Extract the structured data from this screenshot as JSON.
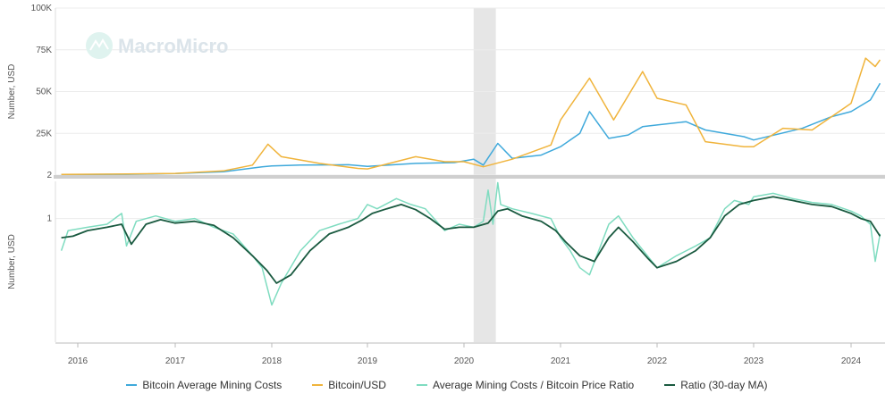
{
  "watermark": "MacroMicro",
  "chart_data": {
    "type": "line",
    "colors": {
      "mining_costs": "#3fa9db",
      "btc_usd": "#f0b43c",
      "ratio": "#7fdcc0",
      "ratio_ma": "#1a5a40",
      "recession_band": "#e6e6e6"
    },
    "x_ticks": [
      "2016",
      "2017",
      "2018",
      "2019",
      "2020",
      "2021",
      "2022",
      "2023",
      "2024"
    ],
    "shaded_region": {
      "x": [
        2020.1,
        2020.33
      ]
    },
    "panels": [
      {
        "name": "top",
        "ylabel": "Number, USD",
        "ylim": [
          2,
          100000
        ],
        "yticks": [
          {
            "value": 2,
            "label": "2"
          },
          {
            "value": 25000,
            "label": "25K"
          },
          {
            "value": 50000,
            "label": "50K"
          },
          {
            "value": 75000,
            "label": "75K"
          },
          {
            "value": 100000,
            "label": "100K"
          }
        ],
        "series": [
          {
            "name": "Bitcoin Average Mining Costs",
            "key": "mining_costs",
            "x": [
              2015.83,
              2016.5,
              2017.0,
              2017.5,
              2017.9,
              2018.0,
              2018.3,
              2018.8,
              2019.0,
              2019.5,
              2019.9,
              2020.1,
              2020.2,
              2020.35,
              2020.5,
              2020.8,
              2021.0,
              2021.2,
              2021.3,
              2021.5,
              2021.7,
              2021.85,
              2022.0,
              2022.3,
              2022.5,
              2022.9,
              2023.0,
              2023.5,
              2023.8,
              2024.0,
              2024.2,
              2024.3
            ],
            "y": [
              300,
              500,
              900,
              2000,
              5000,
              5500,
              6000,
              6200,
              5200,
              7000,
              7500,
              9500,
              6000,
              19000,
              10000,
              12000,
              17000,
              25000,
              38000,
              22000,
              24000,
              29000,
              30000,
              32000,
              27000,
              23000,
              21000,
              28000,
              35000,
              38000,
              45000,
              55000
            ]
          },
          {
            "name": "Bitcoin/USD",
            "key": "btc_usd",
            "x": [
              2015.83,
              2016.5,
              2017.0,
              2017.5,
              2017.8,
              2017.96,
              2018.1,
              2018.5,
              2018.9,
              2019.0,
              2019.5,
              2019.8,
              2020.0,
              2020.2,
              2020.5,
              2020.9,
              2021.0,
              2021.3,
              2021.55,
              2021.85,
              2022.0,
              2022.3,
              2022.5,
              2022.9,
              2023.0,
              2023.3,
              2023.6,
              2023.8,
              2024.0,
              2024.15,
              2024.25,
              2024.3
            ],
            "y": [
              400,
              650,
              1000,
              2500,
              6000,
              18500,
              11000,
              7000,
              4000,
              3700,
              11000,
              8000,
              8000,
              5000,
              9500,
              18000,
              33000,
              58000,
              33000,
              62000,
              46000,
              42000,
              20000,
              17000,
              17000,
              28000,
              27000,
              35000,
              43000,
              70000,
              65000,
              69000
            ]
          }
        ]
      },
      {
        "name": "bottom",
        "ylabel": "Number, USD",
        "ylim": [
          0.1,
          2
        ],
        "yticks": [
          {
            "value": 1,
            "label": "1"
          }
        ],
        "series": [
          {
            "name": "Average Mining Costs / Bitcoin Price Ratio",
            "key": "ratio",
            "x": [
              2015.83,
              2015.9,
              2016.1,
              2016.3,
              2016.45,
              2016.5,
              2016.6,
              2016.8,
              2017.0,
              2017.2,
              2017.4,
              2017.6,
              2017.8,
              2017.9,
              2018.0,
              2018.1,
              2018.3,
              2018.5,
              2018.7,
              2018.9,
              2019.0,
              2019.1,
              2019.3,
              2019.45,
              2019.6,
              2019.8,
              2019.95,
              2020.1,
              2020.2,
              2020.25,
              2020.3,
              2020.35,
              2020.38,
              2020.5,
              2020.7,
              2020.9,
              2021.0,
              2021.1,
              2021.2,
              2021.3,
              2021.5,
              2021.6,
              2021.75,
              2021.9,
              2022.0,
              2022.2,
              2022.4,
              2022.55,
              2022.7,
              2022.8,
              2022.95,
              2023.0,
              2023.2,
              2023.4,
              2023.6,
              2023.8,
              2024.0,
              2024.1,
              2024.2,
              2024.25,
              2024.3
            ],
            "y": [
              0.55,
              0.8,
              0.85,
              0.9,
              1.1,
              0.6,
              0.95,
              1.05,
              0.95,
              1.0,
              0.85,
              0.75,
              0.5,
              0.4,
              0.2,
              0.3,
              0.55,
              0.8,
              0.9,
              1.0,
              1.3,
              1.2,
              1.45,
              1.3,
              1.2,
              0.8,
              0.9,
              0.85,
              0.95,
              1.7,
              0.9,
              1.95,
              1.3,
              1.2,
              1.1,
              1.0,
              0.7,
              0.55,
              0.4,
              0.35,
              0.9,
              1.05,
              0.7,
              0.5,
              0.4,
              0.5,
              0.6,
              0.7,
              1.2,
              1.4,
              1.3,
              1.5,
              1.6,
              1.45,
              1.35,
              1.3,
              1.15,
              1.05,
              0.9,
              0.45,
              0.75
            ]
          },
          {
            "name": "Ratio (30-day MA)",
            "key": "ratio_ma",
            "x": [
              2015.83,
              2015.95,
              2016.1,
              2016.3,
              2016.45,
              2016.55,
              2016.7,
              2016.85,
              2017.0,
              2017.2,
              2017.4,
              2017.6,
              2017.8,
              2017.95,
              2018.05,
              2018.2,
              2018.4,
              2018.6,
              2018.8,
              2018.95,
              2019.05,
              2019.2,
              2019.35,
              2019.5,
              2019.65,
              2019.8,
              2019.95,
              2020.1,
              2020.25,
              2020.35,
              2020.45,
              2020.6,
              2020.8,
              2020.95,
              2021.05,
              2021.2,
              2021.35,
              2021.5,
              2021.6,
              2021.75,
              2021.9,
              2022.0,
              2022.2,
              2022.4,
              2022.55,
              2022.7,
              2022.85,
              2023.0,
              2023.2,
              2023.4,
              2023.6,
              2023.8,
              2024.0,
              2024.1,
              2024.2,
              2024.3
            ],
            "y": [
              0.7,
              0.72,
              0.8,
              0.85,
              0.9,
              0.62,
              0.9,
              0.98,
              0.92,
              0.95,
              0.88,
              0.7,
              0.5,
              0.38,
              0.3,
              0.35,
              0.55,
              0.75,
              0.85,
              0.98,
              1.1,
              1.2,
              1.3,
              1.18,
              1.0,
              0.82,
              0.85,
              0.85,
              0.92,
              1.15,
              1.2,
              1.05,
              0.95,
              0.8,
              0.65,
              0.5,
              0.45,
              0.7,
              0.85,
              0.65,
              0.48,
              0.4,
              0.45,
              0.55,
              0.7,
              1.05,
              1.3,
              1.4,
              1.5,
              1.4,
              1.3,
              1.25,
              1.1,
              1.0,
              0.95,
              0.72
            ]
          }
        ]
      }
    ]
  }
}
